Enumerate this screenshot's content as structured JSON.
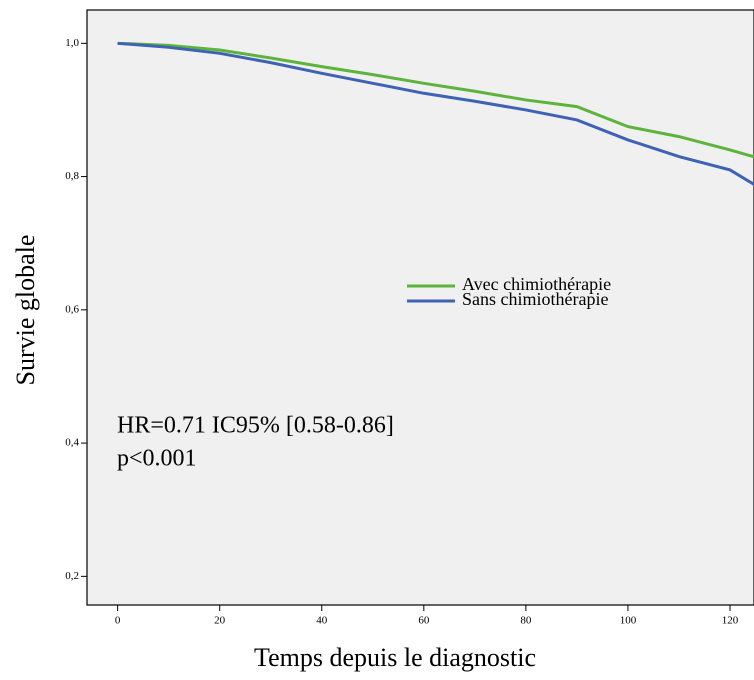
{
  "chart_data": {
    "type": "line",
    "x_label": "Temps depuis le diagnostic",
    "y_label": "Survie globale",
    "x": [
      0,
      10,
      20,
      30,
      40,
      50,
      60,
      70,
      80,
      90,
      100,
      110,
      120,
      125
    ],
    "series": [
      {
        "name": "Avec chimiothérapie",
        "color": "#5cb43c",
        "values": [
          1.0,
          0.997,
          0.99,
          0.978,
          0.965,
          0.953,
          0.94,
          0.928,
          0.915,
          0.905,
          0.875,
          0.86,
          0.84,
          0.829
        ]
      },
      {
        "name": "Sans chimiothérapie",
        "color": "#3e62b4",
        "values": [
          1.0,
          0.994,
          0.985,
          0.971,
          0.955,
          0.94,
          0.925,
          0.913,
          0.9,
          0.885,
          0.855,
          0.83,
          0.81,
          0.787
        ]
      }
    ],
    "xlim": [
      -6,
      124.7
    ],
    "ylim": [
      0.157,
      1.05
    ],
    "xticks": [
      0,
      20,
      40,
      60,
      80,
      100,
      120
    ],
    "yticks": [
      {
        "value": 0.2,
        "label": "0,2"
      },
      {
        "value": 0.4,
        "label": "0,4"
      },
      {
        "value": 0.6,
        "label": "0,6"
      },
      {
        "value": 0.8,
        "label": "0,8"
      },
      {
        "value": 1.0,
        "label": "1,0"
      }
    ],
    "annotations": [
      "HR=0.71 IC95% [0.58-0.86]",
      "p<0.001"
    ]
  }
}
